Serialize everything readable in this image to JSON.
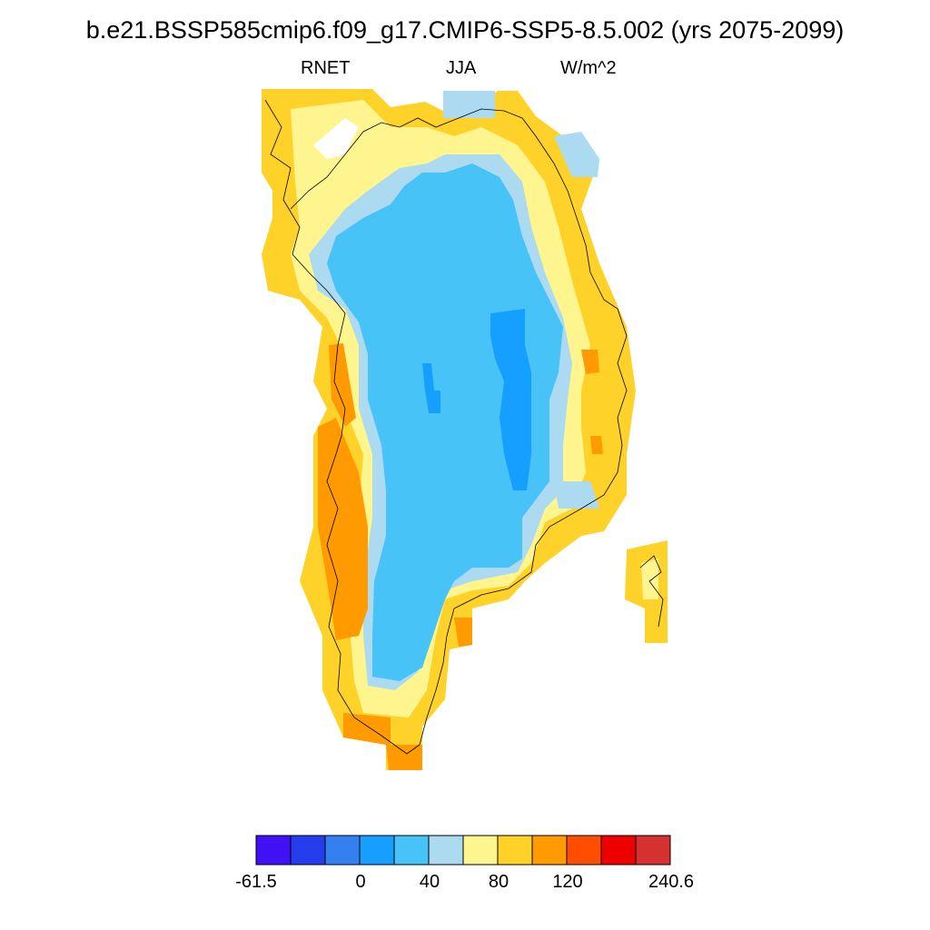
{
  "title": "b.e21.BSSP585cmip6.f09_g17.CMIP6-SSP5-8.5.002 (yrs 2075-2099)",
  "subtitle": {
    "variable": "RNET",
    "season": "JJA",
    "units": "W/m^2"
  },
  "colorbar": {
    "colors": [
      "#4110f5",
      "#263ded",
      "#3580f0",
      "#15a0ff",
      "#47c3f8",
      "#acdaf0",
      "#fff58f",
      "#ffd22a",
      "#ff9a00",
      "#ff4e00",
      "#ee0000",
      "#d63030"
    ],
    "tick_labels": [
      "-61.5",
      "0",
      "40",
      "80",
      "120",
      "240.6"
    ]
  },
  "legend_palette": {
    "light_blue": "#acdaf0",
    "mid_blue": "#47c3f8",
    "deep_blue": "#15a0ff",
    "pale_yellow": "#fff58f",
    "yellow": "#ffd22a",
    "orange": "#ff9a00"
  }
}
